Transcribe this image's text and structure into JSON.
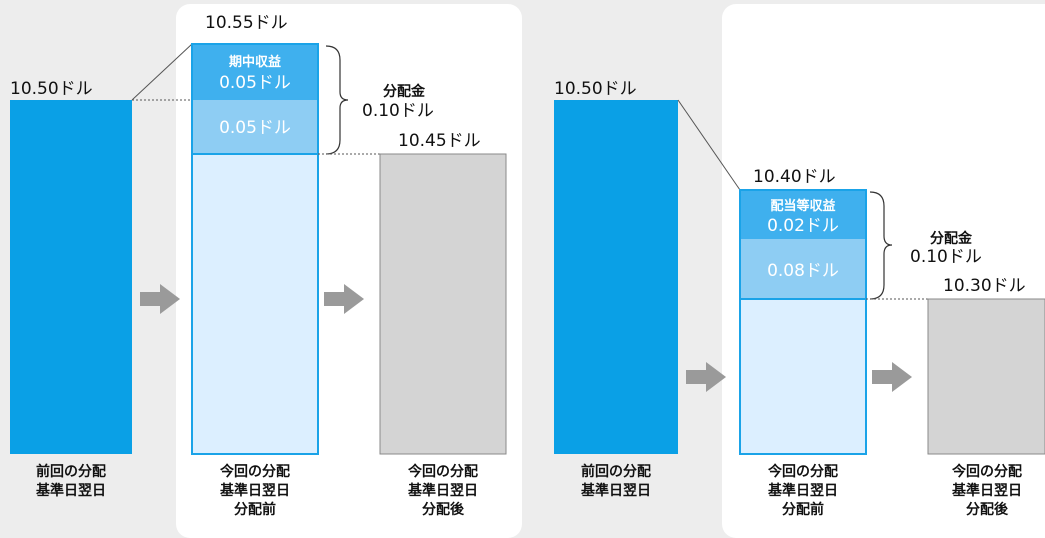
{
  "colors": {
    "background": "#ededed",
    "panel": "#ffffff",
    "prev_bar": "#0aa0e6",
    "bar_fill": "#dcefff",
    "bar_border": "#1aa3e8",
    "income_block": "#3fb0ee",
    "return_block": "#8ecdf3",
    "after_bar": "#d4d4d4",
    "arrow": "#9a9a9a"
  },
  "left": {
    "prev_value": "10.50ドル",
    "prev_caption_line1": "前回の分配",
    "prev_caption_line2": "基準日翌日",
    "before_value": "10.55ドル",
    "income_title": "期中収益",
    "income_amount": "0.05ドル",
    "capital_amount": "0.05ドル",
    "dist_title": "分配金",
    "dist_amount": "0.10ドル",
    "after_value": "10.45ドル",
    "before_caption_line1": "今回の分配",
    "before_caption_line2": "基準日翌日",
    "before_caption_line3": "分配前",
    "after_caption_line1": "今回の分配",
    "after_caption_line2": "基準日翌日",
    "after_caption_line3": "分配後",
    "arrow1_icon": "right-arrow-icon",
    "arrow2_icon": "right-arrow-icon"
  },
  "right": {
    "prev_value": "10.50ドル",
    "prev_caption_line1": "前回の分配",
    "prev_caption_line2": "基準日翌日",
    "before_value": "10.40ドル",
    "income_title": "配当等収益",
    "income_amount": "0.02ドル",
    "capital_amount": "0.08ドル",
    "dist_title": "分配金",
    "dist_amount": "0.10ドル",
    "after_value": "10.30ドル",
    "before_caption_line1": "今回の分配",
    "before_caption_line2": "基準日翌日",
    "before_caption_line3": "分配前",
    "after_caption_line1": "今回の分配",
    "after_caption_line2": "基準日翌日",
    "after_caption_line3": "分配後",
    "arrow1_icon": "right-arrow-icon",
    "arrow2_icon": "right-arrow-icon"
  }
}
